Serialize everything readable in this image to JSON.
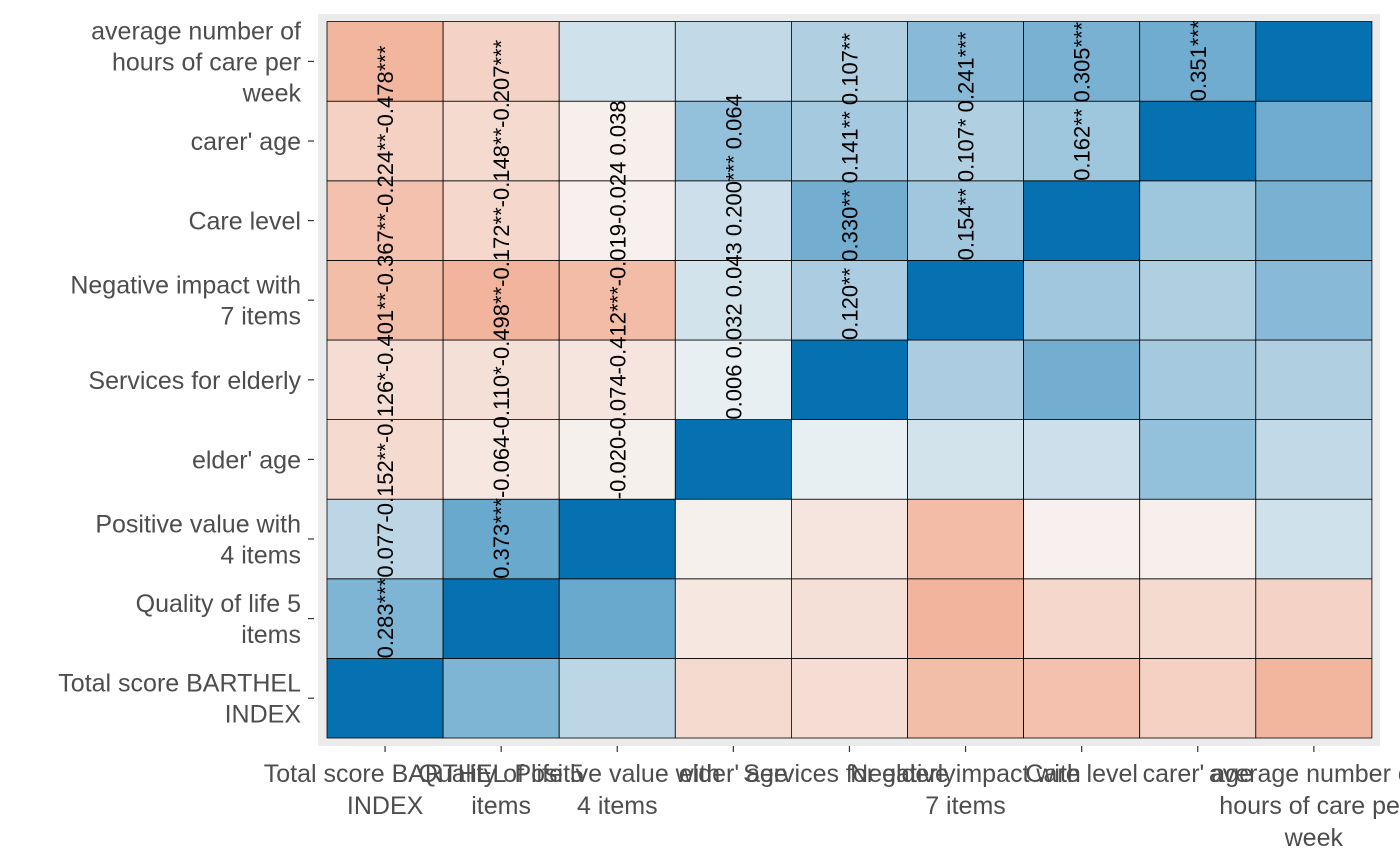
{
  "chart_data": {
    "type": "heatmap",
    "title": "",
    "xlabel": "",
    "ylabel": "",
    "variables": [
      [
        "Total score BARTHEL",
        "INDEX"
      ],
      [
        "Quality of life 5",
        "items"
      ],
      [
        "Positive value with",
        "4 items"
      ],
      [
        "elder' age"
      ],
      [
        "Services for elderly"
      ],
      [
        "Negative impact with",
        "7 items"
      ],
      [
        "Care level"
      ],
      [
        "carer' age"
      ],
      [
        "average number of",
        "hours of care per",
        "week"
      ]
    ],
    "x_tick_labels": [
      [
        "Total score BARTHEL",
        "INDEX"
      ],
      [
        "Quality of life 5",
        "items"
      ],
      [
        "Positive value with",
        "4 items"
      ],
      [
        "elder' age"
      ],
      [
        "Services for elderly"
      ],
      [
        "Negative impact with",
        "7 items"
      ],
      [
        "Care level"
      ],
      [
        "carer' age"
      ],
      [
        "average number of",
        "hours of care per",
        "week"
      ]
    ],
    "correlations": [
      [
        null,
        0.283,
        0.077,
        -0.152,
        -0.126,
        -0.401,
        -0.367,
        -0.224,
        -0.478
      ],
      [
        0.283,
        null,
        0.373,
        -0.064,
        -0.11,
        -0.498,
        -0.172,
        -0.148,
        -0.207
      ],
      [
        0.077,
        0.373,
        null,
        -0.02,
        -0.074,
        -0.412,
        -0.019,
        -0.024,
        0.038
      ],
      [
        -0.152,
        -0.064,
        -0.02,
        null,
        0.006,
        0.032,
        0.043,
        0.2,
        0.064
      ],
      [
        -0.126,
        -0.11,
        -0.074,
        0.006,
        null,
        0.12,
        0.33,
        0.141,
        0.107
      ],
      [
        -0.401,
        -0.498,
        -0.412,
        0.032,
        0.12,
        null,
        0.154,
        0.107,
        0.241
      ],
      [
        -0.367,
        -0.172,
        -0.019,
        0.043,
        0.33,
        0.154,
        null,
        0.162,
        0.305
      ],
      [
        -0.224,
        -0.148,
        -0.024,
        0.2,
        0.141,
        0.107,
        0.162,
        null,
        0.351
      ],
      [
        -0.478,
        -0.207,
        0.038,
        0.064,
        0.107,
        0.241,
        0.305,
        0.351,
        null
      ]
    ],
    "column_label_strings": [
      "0.283***0.077-0.152**-0.126*-0.401**-0.367**-0.224**-0.478***",
      "0.373***-0.064-0.110*-0.498**-0.172**-0.148**-0.207***",
      "-0.020-0.074-0.412***-0.019-0.024 0.038",
      "0.006 0.032 0.043 0.200*** 0.064",
      "0.120** 0.330** 0.141** 0.107**",
      "0.154** 0.107* 0.241***",
      "0.162** 0.305***",
      "0.351***"
    ],
    "diagonal_value": 1,
    "color_scale": {
      "negative": "#ef8a62",
      "zero": "#f7f7f7",
      "positive": "#0571b0",
      "range": [
        -1,
        1
      ]
    },
    "panel_background": "#ebebeb",
    "grid": false,
    "legend": "none"
  }
}
